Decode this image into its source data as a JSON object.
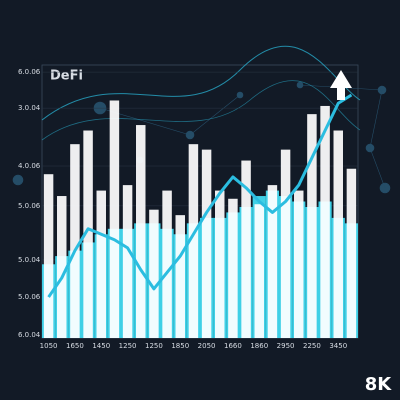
{
  "chart_data": {
    "type": "bar",
    "title": "DeFi",
    "badge": "8K",
    "categories": [
      "1050",
      null,
      "1650",
      null,
      "1450",
      null,
      "1250",
      null,
      "1250",
      null,
      "1850",
      null,
      "2050",
      null,
      "1660",
      null,
      "1860",
      null,
      "2950",
      null,
      "2250",
      null,
      "3450",
      null
    ],
    "series": [
      {
        "type": "bar",
        "color": "#3fd0e6",
        "values": [
          27,
          30,
          32,
          35,
          38,
          40,
          40,
          42,
          42,
          40,
          38,
          42,
          44,
          44,
          46,
          48,
          52,
          54,
          52,
          50,
          48,
          50,
          44,
          42
        ]
      },
      {
        "type": "bar",
        "color": "#ffffff",
        "values": [
          60,
          52,
          71,
          76,
          54,
          87,
          56,
          78,
          47,
          54,
          45,
          71,
          69,
          54,
          51,
          65,
          49,
          56,
          69,
          54,
          82,
          85,
          76,
          62
        ]
      },
      {
        "type": "line",
        "color": "#2bbde0",
        "values": [
          15,
          22,
          32,
          40,
          38,
          36,
          33,
          25,
          18,
          24,
          30,
          38,
          46,
          53,
          59,
          55,
          50,
          46,
          50,
          56,
          66,
          76,
          86,
          89
        ]
      }
    ],
    "ylim": [
      0,
      100
    ],
    "yticks": [
      {
        "value": 97.4,
        "label": "6.0.06"
      },
      {
        "value": 84.2,
        "label": "3.0.04"
      },
      {
        "value": 63,
        "label": "4.0.06"
      },
      {
        "value": 48.4,
        "label": "5.0.06"
      },
      {
        "value": 28.6,
        "label": "5.0.04"
      },
      {
        "value": 15,
        "label": "5.0.06"
      },
      {
        "value": 1.1,
        "label": "6.0.04"
      }
    ],
    "grid": true
  }
}
